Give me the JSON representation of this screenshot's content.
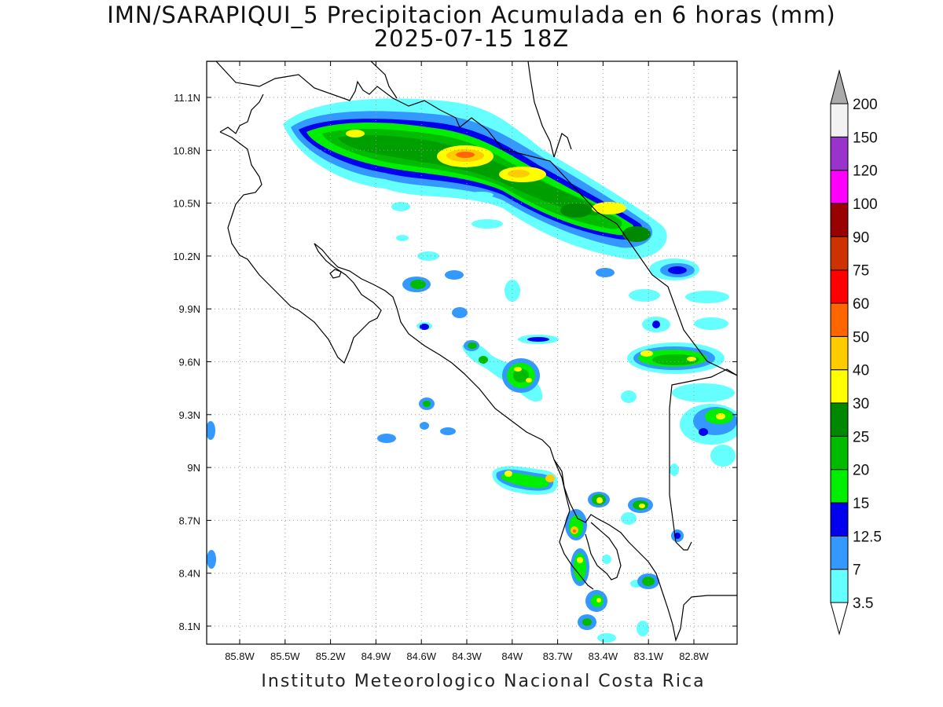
{
  "header": {
    "title": "IMN/SARAPIQUI_5 Precipitacion Acumulada en 6 horas (mm)",
    "datetime": "2025-07-15 18Z"
  },
  "footer": {
    "credit": "Instituto Meteorologico Nacional Costa Rica"
  },
  "map": {
    "lat_ticks": [
      "11.1N",
      "10.8N",
      "10.5N",
      "10.2N",
      "9.9N",
      "9.6N",
      "9.3N",
      "9N",
      "8.7N",
      "8.4N",
      "8.1N"
    ],
    "lon_ticks": [
      "85.8W",
      "85.5W",
      "85.2W",
      "84.9W",
      "84.6W",
      "84.3W",
      "84W",
      "83.7W",
      "83.4W",
      "83.1W",
      "82.8W"
    ],
    "grid": true,
    "coastline_color": "#000000"
  },
  "colorbar": {
    "units": "mm",
    "levels": [
      "3.5",
      "7",
      "12.5",
      "15",
      "20",
      "25",
      "30",
      "40",
      "50",
      "60",
      "75",
      "90",
      "100",
      "120",
      "150",
      "200"
    ],
    "colors": [
      "#66ffff",
      "#3399ff",
      "#0000ee",
      "#00ee00",
      "#00bb00",
      "#008800",
      "#ffff00",
      "#ffcc00",
      "#ff6600",
      "#ff0000",
      "#cc3300",
      "#990000",
      "#ff00ff",
      "#9933cc",
      "#f2f2f2",
      "#aaaaaa"
    ]
  }
}
